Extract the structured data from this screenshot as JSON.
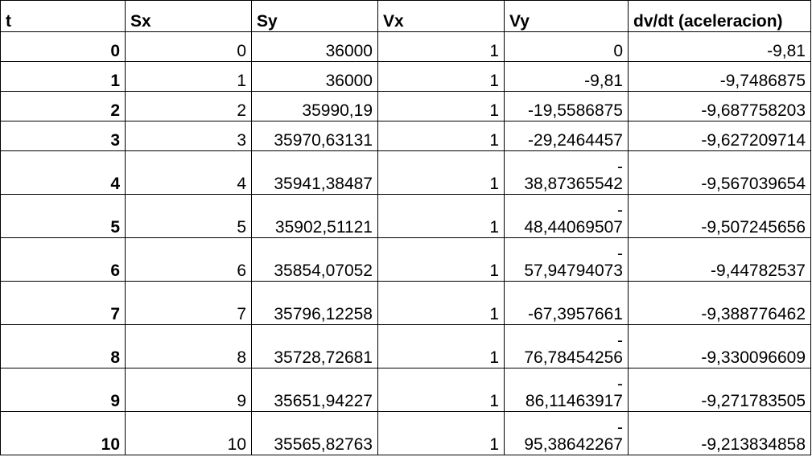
{
  "table": {
    "headers": [
      "t",
      "Sx",
      "Sy",
      "Vx",
      "Vy",
      "dv/dt (aceleracion)"
    ],
    "rows": [
      {
        "t": "0",
        "sx": "0",
        "sy": "36000",
        "vx": "1",
        "vy_sign": "",
        "vy": "0",
        "a": "-9,81"
      },
      {
        "t": "1",
        "sx": "1",
        "sy": "36000",
        "vx": "1",
        "vy_sign": "",
        "vy": "-9,81",
        "a": "-9,7486875"
      },
      {
        "t": "2",
        "sx": "2",
        "sy": "35990,19",
        "vx": "1",
        "vy_sign": "",
        "vy": "-19,5586875",
        "a": "-9,687758203"
      },
      {
        "t": "3",
        "sx": "3",
        "sy": "35970,63131",
        "vx": "1",
        "vy_sign": "",
        "vy": "-29,2464457",
        "a": "-9,627209714"
      },
      {
        "t": "4",
        "sx": "4",
        "sy": "35941,38487",
        "vx": "1",
        "vy_sign": "-",
        "vy": "38,87365542",
        "a": "-9,567039654"
      },
      {
        "t": "5",
        "sx": "5",
        "sy": "35902,51121",
        "vx": "1",
        "vy_sign": "-",
        "vy": "48,44069507",
        "a": "-9,507245656"
      },
      {
        "t": "6",
        "sx": "6",
        "sy": "35854,07052",
        "vx": "1",
        "vy_sign": "-",
        "vy": "57,94794073",
        "a": "-9,44782537"
      },
      {
        "t": "7",
        "sx": "7",
        "sy": "35796,12258",
        "vx": "1",
        "vy_sign": "",
        "vy": "-67,3957661",
        "a": "-9,388776462"
      },
      {
        "t": "8",
        "sx": "8",
        "sy": "35728,72681",
        "vx": "1",
        "vy_sign": "-",
        "vy": "76,78454256",
        "a": "-9,330096609"
      },
      {
        "t": "9",
        "sx": "9",
        "sy": "35651,94227",
        "vx": "1",
        "vy_sign": "-",
        "vy": "86,11463917",
        "a": "-9,271783505"
      },
      {
        "t": "10",
        "sx": "10",
        "sy": "35565,82763",
        "vx": "1",
        "vy_sign": "-",
        "vy": "95,38642267",
        "a": "-9,213834858"
      }
    ]
  }
}
